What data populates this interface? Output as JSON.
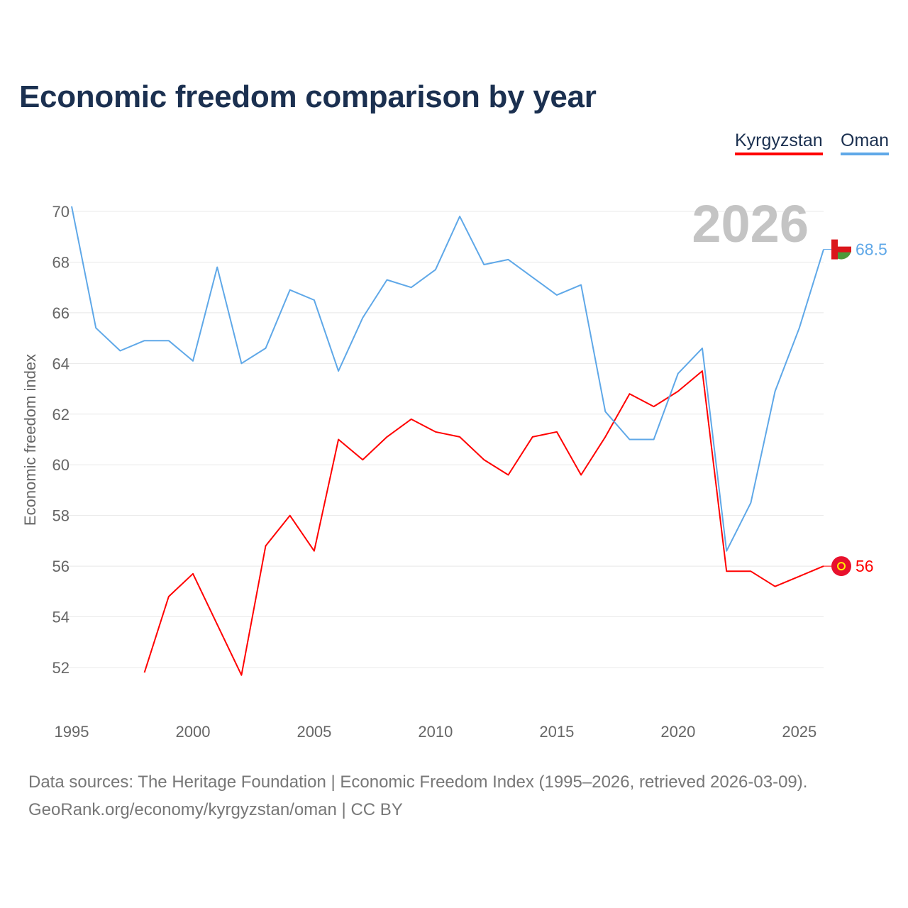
{
  "title": "Economic freedom comparison by year",
  "legend": [
    {
      "label": "Kyrgyzstan",
      "color": "#ff0000"
    },
    {
      "label": "Oman",
      "color": "#5fa8e8"
    }
  ],
  "year_watermark": "2026",
  "source_line1": "Data sources: The Heritage Foundation | Economic Freedom Index (1995–2026, retrieved 2026-03-09).",
  "source_line2": "GeoRank.org/economy/kyrgyzstan/oman | CC BY",
  "chart_data": {
    "type": "line",
    "title": "Economic freedom comparison by year",
    "xlabel": "",
    "ylabel": "Economic freedom index",
    "xlim": [
      1995,
      2026
    ],
    "ylim": [
      50.5,
      71
    ],
    "x_ticks": [
      1995,
      2000,
      2005,
      2010,
      2015,
      2020,
      2025
    ],
    "y_ticks": [
      52,
      54,
      56,
      58,
      60,
      62,
      64,
      66,
      68,
      70
    ],
    "grid": true,
    "legend_position": "top-right",
    "series": [
      {
        "name": "Kyrgyzstan",
        "color": "#ff0000",
        "end_label": "56",
        "x": [
          1998,
          1999,
          2000,
          2001,
          2002,
          2003,
          2004,
          2005,
          2006,
          2007,
          2008,
          2009,
          2010,
          2011,
          2012,
          2013,
          2014,
          2015,
          2016,
          2017,
          2018,
          2019,
          2020,
          2021,
          2022,
          2023,
          2024,
          2025,
          2026
        ],
        "values": [
          51.8,
          54.8,
          55.7,
          53.7,
          51.7,
          56.8,
          58.0,
          56.6,
          61.0,
          60.2,
          61.1,
          61.8,
          61.3,
          61.1,
          60.2,
          59.6,
          61.1,
          61.3,
          59.6,
          61.1,
          62.8,
          62.3,
          62.9,
          63.7,
          55.8,
          55.8,
          55.2,
          55.6,
          56.0
        ]
      },
      {
        "name": "Oman",
        "color": "#5fa8e8",
        "end_label": "68.5",
        "x": [
          1995,
          1996,
          1997,
          1998,
          1999,
          2000,
          2001,
          2002,
          2003,
          2004,
          2005,
          2006,
          2007,
          2008,
          2009,
          2010,
          2011,
          2012,
          2013,
          2014,
          2015,
          2016,
          2017,
          2018,
          2019,
          2020,
          2021,
          2022,
          2023,
          2024,
          2025,
          2026
        ],
        "values": [
          70.2,
          65.4,
          64.5,
          64.9,
          64.9,
          64.1,
          67.8,
          64.0,
          64.6,
          66.9,
          66.5,
          63.7,
          65.8,
          67.3,
          67.0,
          67.7,
          69.8,
          67.9,
          68.1,
          67.4,
          66.7,
          67.1,
          62.1,
          61.0,
          61.0,
          63.6,
          64.6,
          56.6,
          58.5,
          62.9,
          65.4,
          68.5
        ]
      }
    ]
  }
}
